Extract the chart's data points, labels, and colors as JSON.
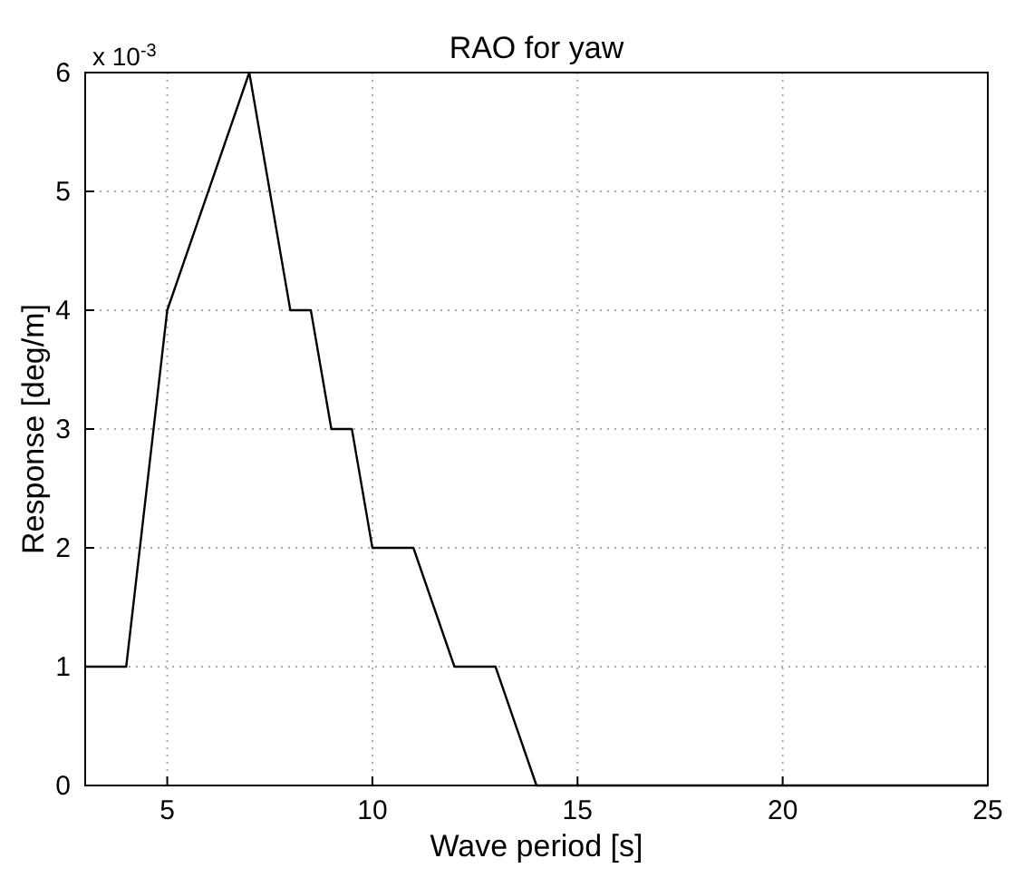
{
  "chart_data": {
    "type": "line",
    "title": "RAO for yaw",
    "xlabel": "Wave period [s]",
    "ylabel": "Response [deg/m]",
    "annotations": [
      "x 10$^{-3}$"
    ],
    "x": [
      3,
      4,
      5,
      7,
      8,
      8.5,
      9,
      9.5,
      10,
      11,
      12,
      13,
      14,
      25
    ],
    "series": [
      {
        "color": "#000000",
        "values": [
          1,
          1,
          4,
          6,
          4,
          4,
          3,
          3,
          2,
          2,
          1,
          1,
          0,
          0
        ]
      }
    ],
    "xlim": [
      3,
      25
    ],
    "xticks": [
      5,
      10,
      15,
      20,
      25
    ],
    "ylim": [
      0,
      6
    ],
    "yticks": [
      0,
      1,
      2,
      3,
      4,
      5,
      6
    ],
    "grid": true,
    "marker": "none",
    "line_style": "solid"
  }
}
